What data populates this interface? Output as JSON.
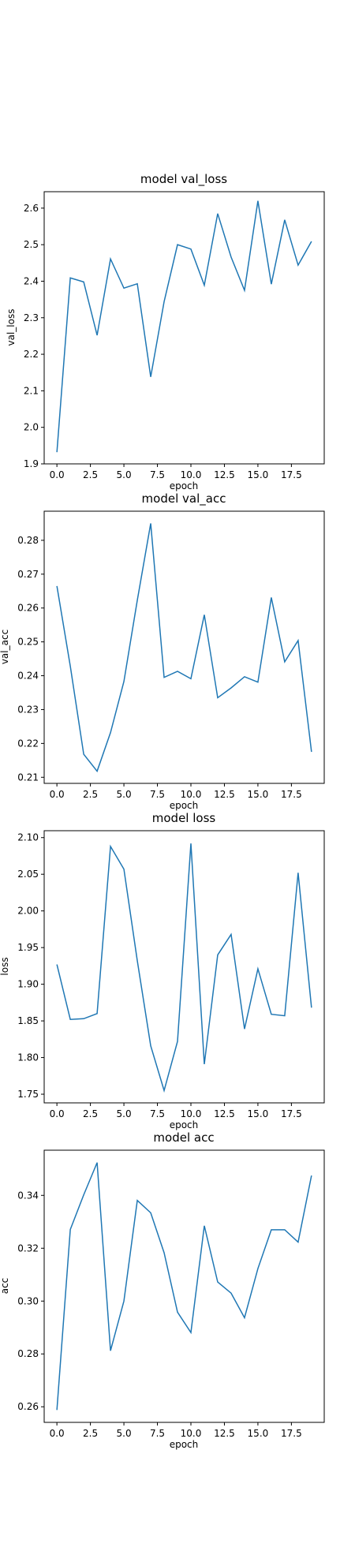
{
  "chart_data": [
    {
      "type": "line",
      "title": "model val_loss",
      "xlabel": "epoch",
      "ylabel": "val_loss",
      "xlim": [
        -0.95,
        19.95
      ],
      "ylim": [
        1.9,
        2.645
      ],
      "xticks": [
        "0.0",
        "2.5",
        "5.0",
        "7.5",
        "10.0",
        "12.5",
        "15.0",
        "17.5"
      ],
      "yticks": [
        "1.9",
        "2.0",
        "2.1",
        "2.2",
        "2.3",
        "2.4",
        "2.5",
        "2.6"
      ],
      "grid": false,
      "series": [
        {
          "color": "#1f77b4",
          "x": [
            0,
            1,
            2,
            3,
            4,
            5,
            6,
            7,
            8,
            9,
            10,
            11,
            12,
            13,
            14,
            15,
            16,
            17,
            18,
            19
          ],
          "values": [
            1.932,
            2.409,
            2.398,
            2.252,
            2.461,
            2.381,
            2.393,
            2.138,
            2.344,
            2.5,
            2.488,
            2.389,
            2.585,
            2.466,
            2.375,
            2.62,
            2.392,
            2.568,
            2.444,
            2.509
          ]
        }
      ]
    },
    {
      "type": "line",
      "title": "model val_acc",
      "xlabel": "epoch",
      "ylabel": "val_acc",
      "xlim": [
        -0.95,
        19.95
      ],
      "ylim": [
        0.2082,
        0.2886
      ],
      "xticks": [
        "0.0",
        "2.5",
        "5.0",
        "7.5",
        "10.0",
        "12.5",
        "15.0",
        "17.5"
      ],
      "yticks": [
        "0.21",
        "0.22",
        "0.23",
        "0.24",
        "0.25",
        "0.26",
        "0.27",
        "0.28"
      ],
      "grid": false,
      "series": [
        {
          "color": "#1f77b4",
          "x": [
            0,
            1,
            2,
            3,
            4,
            5,
            6,
            7,
            8,
            9,
            10,
            11,
            12,
            13,
            14,
            15,
            16,
            17,
            18,
            19
          ],
          "values": [
            0.2665,
            0.2428,
            0.2168,
            0.2118,
            0.2232,
            0.2383,
            0.2623,
            0.285,
            0.2395,
            0.2413,
            0.2391,
            0.258,
            0.2335,
            0.2364,
            0.2397,
            0.2381,
            0.2631,
            0.2441,
            0.2504,
            0.2175
          ]
        }
      ]
    },
    {
      "type": "line",
      "title": "model loss",
      "xlabel": "epoch",
      "ylabel": "loss",
      "xlim": [
        -0.95,
        19.95
      ],
      "ylim": [
        1.7382,
        2.1094
      ],
      "xticks": [
        "0.0",
        "2.5",
        "5.0",
        "7.5",
        "10.0",
        "12.5",
        "15.0",
        "17.5"
      ],
      "yticks": [
        "1.75",
        "1.80",
        "1.85",
        "1.90",
        "1.95",
        "2.00",
        "2.05",
        "2.10"
      ],
      "grid": false,
      "series": [
        {
          "color": "#1f77b4",
          "x": [
            0,
            1,
            2,
            3,
            4,
            5,
            6,
            7,
            8,
            9,
            10,
            11,
            12,
            13,
            14,
            15,
            16,
            17,
            18,
            19
          ],
          "values": [
            1.927,
            1.852,
            1.853,
            1.86,
            2.088,
            2.057,
            1.932,
            1.816,
            1.755,
            1.822,
            2.092,
            1.791,
            1.94,
            1.968,
            1.839,
            1.921,
            1.859,
            1.857,
            2.052,
            1.868
          ]
        }
      ]
    },
    {
      "type": "line",
      "title": "model acc",
      "xlabel": "epoch",
      "ylabel": "acc",
      "xlim": [
        -0.95,
        19.95
      ],
      "ylim": [
        0.2541,
        0.3571
      ],
      "xticks": [
        "0.0",
        "2.5",
        "5.0",
        "7.5",
        "10.0",
        "12.5",
        "15.0",
        "17.5"
      ],
      "yticks": [
        "0.26",
        "0.28",
        "0.30",
        "0.32",
        "0.34"
      ],
      "grid": false,
      "series": [
        {
          "color": "#1f77b4",
          "x": [
            0,
            1,
            2,
            3,
            4,
            5,
            6,
            7,
            8,
            9,
            10,
            11,
            12,
            13,
            14,
            15,
            16,
            17,
            18,
            19
          ],
          "values": [
            0.2588,
            0.3271,
            0.3402,
            0.3524,
            0.2812,
            0.3,
            0.3381,
            0.3334,
            0.3183,
            0.2958,
            0.2881,
            0.3285,
            0.3072,
            0.303,
            0.2937,
            0.3123,
            0.327,
            0.327,
            0.3223,
            0.3475
          ]
        }
      ]
    }
  ]
}
